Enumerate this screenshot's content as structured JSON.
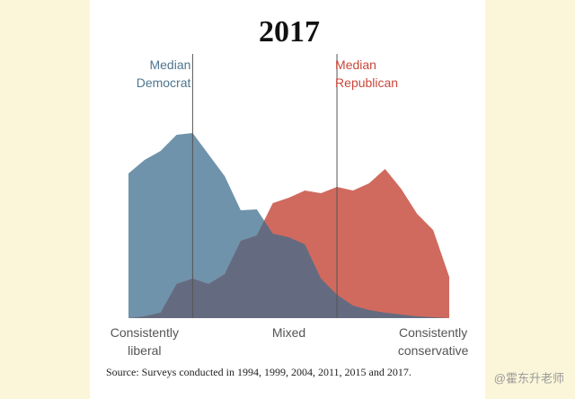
{
  "chart_data": {
    "type": "area",
    "title": "2017",
    "x": [
      0,
      1,
      2,
      3,
      4,
      5,
      6,
      7,
      8,
      9,
      10,
      11,
      12,
      13,
      14,
      15,
      16,
      17,
      18,
      19,
      20
    ],
    "xlim": [
      0,
      20
    ],
    "x_labels": [
      {
        "value": 1,
        "label": "Consistently liberal"
      },
      {
        "value": 10,
        "label": "Mixed"
      },
      {
        "value": 19,
        "label": "Consistently conservative"
      }
    ],
    "ylim": [
      0,
      210
    ],
    "series": [
      {
        "name": "Democrat",
        "color": "#6f93ab",
        "values": [
          161,
          176,
          186,
          204,
          206,
          182,
          158,
          120,
          121,
          94,
          90,
          82,
          44,
          26,
          14,
          9,
          6,
          4,
          2,
          1,
          0
        ]
      },
      {
        "name": "Republican",
        "color": "#d06a5e",
        "values": [
          0,
          2,
          6,
          38,
          44,
          38,
          49,
          86,
          92,
          128,
          134,
          142,
          139,
          146,
          142,
          150,
          166,
          144,
          116,
          98,
          46
        ]
      }
    ],
    "overlap_color": "#646b80",
    "medians": [
      {
        "label": "Median Democrat",
        "x": 4,
        "color": "#4f7590"
      },
      {
        "label": "Median Republican",
        "x": 13,
        "color": "#c9473a"
      }
    ],
    "source": "Source: Surveys conducted in 1994, 1999, 2004, 2011, 2015 and 2017.",
    "watermark": "@霍东升老师"
  }
}
